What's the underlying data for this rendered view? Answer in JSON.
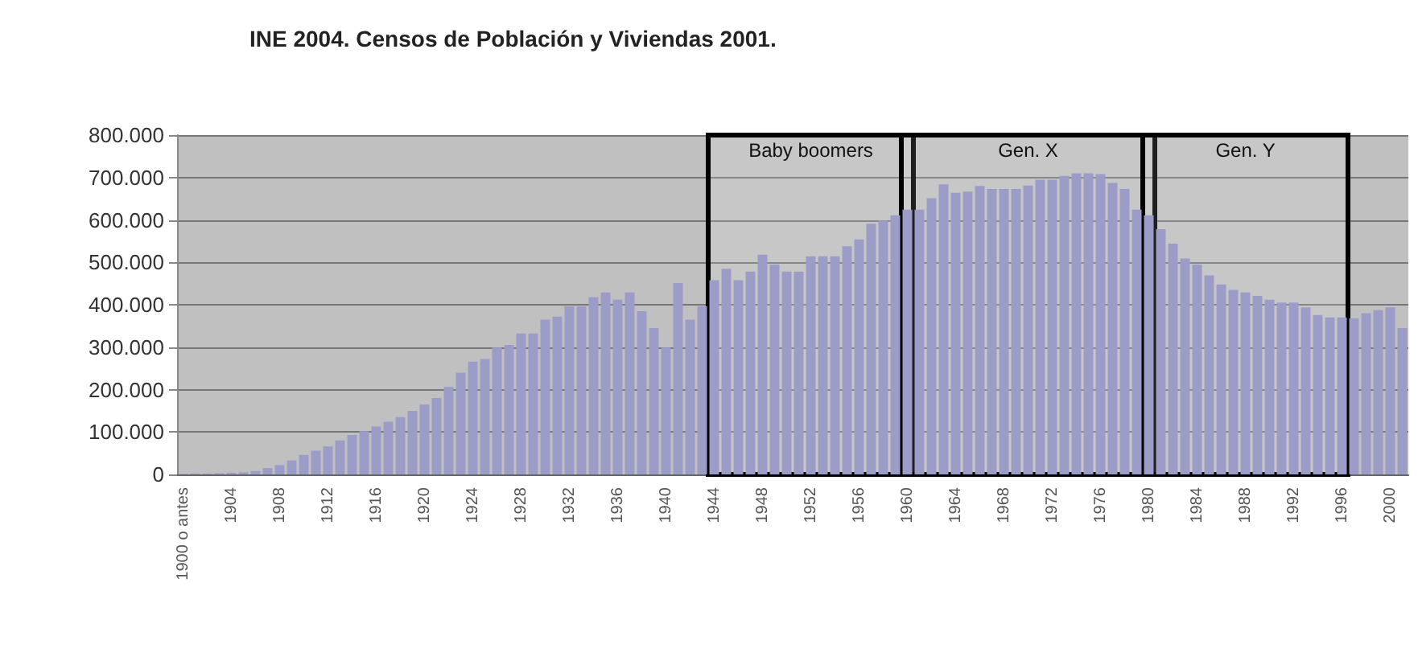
{
  "chart_data": {
    "type": "bar",
    "title": "INE 2004. Censos de Población y Viviendas 2001.",
    "categories": [
      "1900 o antes",
      null,
      null,
      null,
      "1904",
      null,
      null,
      null,
      "1908",
      null,
      null,
      null,
      "1912",
      null,
      null,
      null,
      "1916",
      null,
      null,
      null,
      "1920",
      null,
      null,
      null,
      "1924",
      null,
      null,
      null,
      "1928",
      null,
      null,
      null,
      "1932",
      null,
      null,
      null,
      "1936",
      null,
      null,
      null,
      "1940",
      null,
      null,
      null,
      "1944",
      null,
      null,
      null,
      "1948",
      null,
      null,
      null,
      "1952",
      null,
      null,
      null,
      "1956",
      null,
      null,
      null,
      "1960",
      null,
      null,
      null,
      "1964",
      null,
      null,
      null,
      "1968",
      null,
      null,
      null,
      "1972",
      null,
      null,
      null,
      "1976",
      null,
      null,
      null,
      "1980",
      null,
      null,
      null,
      "1984",
      null,
      null,
      null,
      "1988",
      null,
      null,
      null,
      "1992",
      null,
      null,
      null,
      "1996",
      null,
      null,
      null,
      "2000",
      null
    ],
    "values": [
      1000,
      2000,
      2000,
      3000,
      4000,
      5000,
      8000,
      15000,
      22000,
      33000,
      46000,
      56000,
      66000,
      80000,
      93000,
      102000,
      113000,
      124000,
      135000,
      150000,
      165000,
      180000,
      206000,
      240000,
      266000,
      272000,
      299000,
      305000,
      332000,
      332000,
      365000,
      372000,
      396000,
      396000,
      418000,
      429000,
      412000,
      429000,
      385000,
      345000,
      299000,
      451000,
      365000,
      396000,
      458000,
      485000,
      458000,
      478000,
      518000,
      495000,
      478000,
      478000,
      514000,
      514000,
      514000,
      538000,
      554000,
      591000,
      598000,
      611000,
      624000,
      624000,
      651000,
      684000,
      664000,
      667000,
      680000,
      673000,
      673000,
      673000,
      681000,
      695000,
      695000,
      704000,
      710000,
      710000,
      708000,
      687000,
      673000,
      624000,
      611000,
      578000,
      544000,
      509000,
      495000,
      469000,
      448000,
      435000,
      429000,
      421000,
      412000,
      405000,
      405000,
      394000,
      376000,
      370000,
      370000,
      368000,
      380000,
      387000,
      394000,
      345000
    ],
    "color": "#9c9cc8",
    "ylim": [
      0,
      800000
    ],
    "yticks": [
      0,
      {
        "value": 100000,
        "label": "100.000"
      },
      {
        "value": 200000,
        "label": "200.000"
      },
      {
        "value": 300000,
        "label": "300.000"
      },
      {
        "value": 400000,
        "label": "400.000"
      },
      {
        "value": 500000,
        "label": "500.000"
      },
      {
        "value": 600000,
        "label": "600.000"
      },
      {
        "value": 700000,
        "label": "700.000"
      },
      {
        "value": 800000,
        "label": "800.000"
      }
    ],
    "grid": "y",
    "bands": [
      {
        "axis": "x",
        "from": "1944",
        "to": "1960",
        "label": "Baby boomers"
      },
      {
        "axis": "x",
        "from": "1960",
        "to": "1980",
        "label": "Gen. X"
      },
      {
        "axis": "x",
        "from": "1980",
        "to": "1996",
        "label": "Gen. Y"
      }
    ]
  }
}
